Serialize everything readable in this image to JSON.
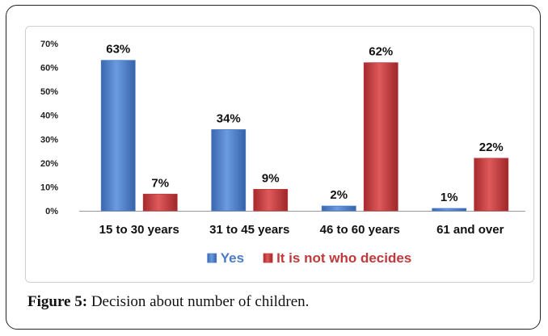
{
  "chart_data": {
    "type": "bar",
    "categories": [
      "15 to 30 years",
      "31 to 45 years",
      "46 to 60 years",
      "61 and over"
    ],
    "series": [
      {
        "name": "Yes",
        "color": "#4a7cc6",
        "values": [
          63,
          34,
          2,
          1
        ],
        "labels": [
          "63%",
          "34%",
          "2%",
          "1%"
        ]
      },
      {
        "name": "It is not who decides",
        "color": "#c0393b",
        "values": [
          7,
          9,
          62,
          22
        ],
        "labels": [
          "7%",
          "9%",
          "62%",
          "22%"
        ]
      }
    ],
    "yticks": [
      "0%",
      "10%",
      "20%",
      "30%",
      "40%",
      "50%",
      "60%",
      "70%"
    ],
    "ylim": [
      0,
      70
    ],
    "grid": false,
    "legend_position": "bottom"
  },
  "caption": {
    "label": "Figure 5:",
    "text": " Decision about number of children."
  }
}
